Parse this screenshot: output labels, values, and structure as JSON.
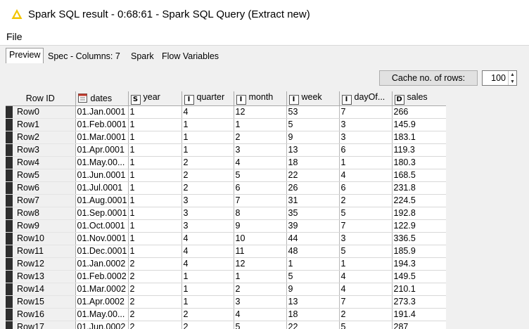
{
  "window": {
    "title": "Spark SQL result - 0:68:61 - Spark SQL Query (Extract new)",
    "icon": "warning-icon",
    "icon_color": "#f2c400"
  },
  "menu": {
    "file_label": "File"
  },
  "tabs": [
    {
      "label": "Preview"
    },
    {
      "label": "Spec - Columns: 7"
    },
    {
      "label": "Spark"
    },
    {
      "label": "Flow Variables"
    }
  ],
  "cache": {
    "label": "Cache no. of rows:",
    "value": "100"
  },
  "table": {
    "columns": [
      {
        "label": "Row ID",
        "type_icon": ""
      },
      {
        "label": "dates",
        "type_icon": "calendar-icon"
      },
      {
        "label": "year",
        "type_icon": "S"
      },
      {
        "label": "quarter",
        "type_icon": "I"
      },
      {
        "label": "month",
        "type_icon": "I"
      },
      {
        "label": "week",
        "type_icon": "I"
      },
      {
        "label": "dayOf...",
        "type_icon": "I"
      },
      {
        "label": "sales",
        "type_icon": "D"
      }
    ],
    "rows": [
      [
        "Row0",
        "01.Jan.0001",
        "1",
        "4",
        "12",
        "53",
        "7",
        "266"
      ],
      [
        "Row1",
        "01.Feb.0001",
        "1",
        "1",
        "1",
        "5",
        "3",
        "145.9"
      ],
      [
        "Row2",
        "01.Mar.0001",
        "1",
        "1",
        "2",
        "9",
        "3",
        "183.1"
      ],
      [
        "Row3",
        "01.Apr.0001",
        "1",
        "1",
        "3",
        "13",
        "6",
        "119.3"
      ],
      [
        "Row4",
        "01.May.00...",
        "1",
        "2",
        "4",
        "18",
        "1",
        "180.3"
      ],
      [
        "Row5",
        "01.Jun.0001",
        "1",
        "2",
        "5",
        "22",
        "4",
        "168.5"
      ],
      [
        "Row6",
        "01.Jul.0001",
        "1",
        "2",
        "6",
        "26",
        "6",
        "231.8"
      ],
      [
        "Row7",
        "01.Aug.0001",
        "1",
        "3",
        "7",
        "31",
        "2",
        "224.5"
      ],
      [
        "Row8",
        "01.Sep.0001",
        "1",
        "3",
        "8",
        "35",
        "5",
        "192.8"
      ],
      [
        "Row9",
        "01.Oct.0001",
        "1",
        "3",
        "9",
        "39",
        "7",
        "122.9"
      ],
      [
        "Row10",
        "01.Nov.0001",
        "1",
        "4",
        "10",
        "44",
        "3",
        "336.5"
      ],
      [
        "Row11",
        "01.Dec.0001",
        "1",
        "4",
        "11",
        "48",
        "5",
        "185.9"
      ],
      [
        "Row12",
        "01.Jan.0002",
        "2",
        "4",
        "12",
        "1",
        "1",
        "194.3"
      ],
      [
        "Row13",
        "01.Feb.0002",
        "2",
        "1",
        "1",
        "5",
        "4",
        "149.5"
      ],
      [
        "Row14",
        "01.Mar.0002",
        "2",
        "1",
        "2",
        "9",
        "4",
        "210.1"
      ],
      [
        "Row15",
        "01.Apr.0002",
        "2",
        "1",
        "3",
        "13",
        "7",
        "273.3"
      ],
      [
        "Row16",
        "01.May.00...",
        "2",
        "2",
        "4",
        "18",
        "2",
        "191.4"
      ],
      [
        "Row17",
        "01.Jun.0002",
        "2",
        "2",
        "5",
        "22",
        "5",
        "287"
      ]
    ]
  }
}
